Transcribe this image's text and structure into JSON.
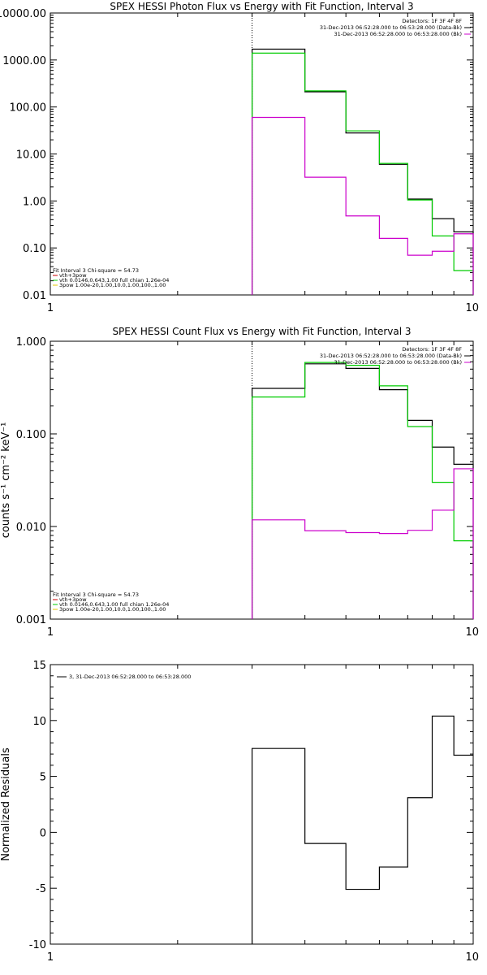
{
  "colors": {
    "black": "#000000",
    "green": "#00cc00",
    "magenta": "#cc00cc",
    "red": "#cc0000",
    "yellow": "#e6c700"
  },
  "chart_data": [
    {
      "type": "line",
      "title": "SPEX HESSI Photon Flux vs Energy with Fit Function, Interval 3",
      "xscale": "log",
      "yscale": "log",
      "xlim": [
        1,
        10
      ],
      "ylim": [
        0.01,
        10000
      ],
      "xticks": [
        1,
        10
      ],
      "xtick_labels": [
        "1",
        "10"
      ],
      "yticks": [
        0.01,
        0.1,
        1,
        10,
        100,
        1000,
        10000
      ],
      "ytick_labels": [
        "0.01",
        "0.10",
        "1.00",
        "10.00",
        "100.00",
        "1000.00",
        "10000.00"
      ],
      "fit_interval_start": 3,
      "legend_top_right": [
        {
          "text": "Detectors: 1F 3F 4F 8F",
          "color": "#000000"
        },
        {
          "text": "31-Dec-2013 06:52:28.000 to 06:53:28.000 (Data-Bk)",
          "color": "#000000"
        },
        {
          "text": "31-Dec-2013 06:52:28.000 to 06:53:28.000 (Bk)",
          "color": "#cc00cc"
        }
      ],
      "legend_bottom_left": [
        {
          "text": "Fit Interval 3   Chi-square = 54.73",
          "color": "#000000"
        },
        {
          "text": "vth+3pow",
          "color": "#cc0000"
        },
        {
          "text": "vth 0.0146,0.643,1.00   full chian 1.26e-04",
          "color": "#00cc00"
        },
        {
          "text": "3pow 1.00e-20,1.00,10.0,1.00,100.,1.00",
          "color": "#e6c700"
        }
      ],
      "edges": [
        3,
        4,
        5,
        6,
        7,
        8,
        9,
        10
      ],
      "series": [
        {
          "name": "Data-Bk",
          "color": "#000000",
          "values": [
            1700,
            210,
            28,
            6,
            1.1,
            0.42,
            0.22
          ]
        },
        {
          "name": "vth+3pow",
          "color": "#00cc00",
          "values": [
            1400,
            220,
            31,
            6.3,
            1.05,
            0.18,
            0.033
          ]
        },
        {
          "name": "Bk",
          "color": "#cc00cc",
          "values": [
            60,
            3.2,
            0.48,
            0.16,
            0.07,
            0.085,
            0.2
          ]
        }
      ]
    },
    {
      "type": "line",
      "title": "SPEX HESSI Count Flux vs Energy with Fit Function, Interval 3",
      "ylabel": "counts s⁻¹ cm⁻² keV⁻¹",
      "xscale": "log",
      "yscale": "log",
      "xlim": [
        1,
        10
      ],
      "ylim": [
        0.001,
        1
      ],
      "xticks": [
        1,
        10
      ],
      "xtick_labels": [
        "1",
        "10"
      ],
      "yticks": [
        0.001,
        0.01,
        0.1,
        1
      ],
      "ytick_labels": [
        "0.001",
        "0.010",
        "0.100",
        "1.000"
      ],
      "fit_interval_start": 3,
      "legend_top_right": [
        {
          "text": "Detectors: 1F 3F 4F 8F",
          "color": "#000000"
        },
        {
          "text": "31-Dec-2013 06:52:28.000 to 06:53:28.000 (Data-Bk)",
          "color": "#000000"
        },
        {
          "text": "31-Dec-2013 06:52:28.000 to 06:53:28.000 (Bk)",
          "color": "#cc00cc"
        }
      ],
      "legend_bottom_left": [
        {
          "text": "Fit Interval 3   Chi-square = 54.73",
          "color": "#000000"
        },
        {
          "text": "vth+3pow",
          "color": "#cc0000"
        },
        {
          "text": "vth 0.0146,0.643,1.00   full chian 1.26e-04",
          "color": "#00cc00"
        },
        {
          "text": "3pow 1.00e-20,1.00,10.0,1.00,100.,1.00",
          "color": "#e6c700"
        }
      ],
      "edges": [
        3,
        4,
        5,
        6,
        7,
        8,
        9,
        10
      ],
      "series": [
        {
          "name": "Data-Bk",
          "color": "#000000",
          "values": [
            0.31,
            0.57,
            0.51,
            0.3,
            0.14,
            0.072,
            0.047
          ]
        },
        {
          "name": "vth+3pow",
          "color": "#00cc00",
          "values": [
            0.25,
            0.59,
            0.55,
            0.33,
            0.12,
            0.03,
            0.007
          ]
        },
        {
          "name": "Bk",
          "color": "#cc00cc",
          "values": [
            0.0118,
            0.009,
            0.0086,
            0.0084,
            0.0091,
            0.015,
            0.042
          ]
        }
      ]
    },
    {
      "type": "line",
      "title": "",
      "ylabel": "Normalized Residuals",
      "xscale": "log",
      "yscale": "linear",
      "xlim": [
        1,
        10
      ],
      "ylim": [
        -10,
        15
      ],
      "xticks": [
        1,
        10
      ],
      "xtick_labels": [
        "1",
        "10"
      ],
      "yticks": [
        -10,
        -5,
        0,
        5,
        10,
        15
      ],
      "ytick_labels": [
        "-10",
        "-5",
        "0",
        "5",
        "10",
        "15"
      ],
      "legend_top_left": [
        {
          "text": "3, 31-Dec-2013 06:52:28.000 to 06:53:28.000",
          "color": "#000000"
        }
      ],
      "edges": [
        3,
        4,
        5,
        6,
        7,
        8,
        9,
        10
      ],
      "series": [
        {
          "name": "3, 31-Dec-2013 06:52:28.000 to 06:53:28.000",
          "color": "#000000",
          "values": [
            7.5,
            -1,
            -5.1,
            -3.1,
            3.1,
            10.4,
            6.9
          ]
        }
      ]
    }
  ]
}
